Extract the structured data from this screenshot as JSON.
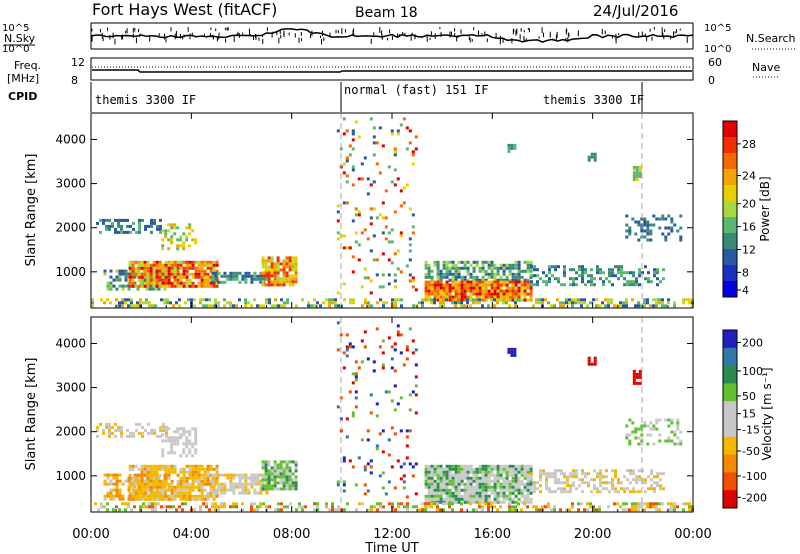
{
  "header": {
    "title": "Fort Hays West (fitACF)",
    "beam": "Beam 18",
    "date": "24/Jul/2016"
  },
  "status_panels": {
    "nsky_label": "N.Sky",
    "nsearch_label": "N.Search",
    "nsky_ticks": [
      "10^5",
      "10^0"
    ],
    "nsearch_ticks": [
      "10^5",
      "10^0"
    ],
    "freq_label_1": "Freq.",
    "freq_label_2": "[MHz]",
    "freq_ticks": [
      "12",
      "8"
    ],
    "nave_label": "Nave",
    "nave_ticks": [
      "60",
      "0"
    ],
    "cpid_label": "CPID",
    "cpid_segments": [
      {
        "label": "themis 3300 IF",
        "start_hour": 0,
        "end_hour": 10
      },
      {
        "label": "normal (fast) 151 IF",
        "start_hour": 10,
        "end_hour": 22
      },
      {
        "label": "themis 3300 IF",
        "start_hour": 22,
        "end_hour": 24
      }
    ]
  },
  "chart_data": [
    {
      "type": "heatmap",
      "name": "power",
      "xlabel": "Time UT",
      "ylabel": "Slant Range [km]",
      "xlim_hours": [
        0,
        24
      ],
      "ylim": [
        180,
        4600
      ],
      "x_ticks": [
        "00:00",
        "04:00",
        "08:00",
        "12:00",
        "16:00",
        "20:00",
        "00:00"
      ],
      "y_ticks": [
        1000,
        2000,
        3000,
        4000
      ],
      "colorbar_label": "Power [dB]",
      "colorbar_ticks": [
        "28",
        "24",
        "20",
        "16",
        "12",
        "8",
        "4"
      ],
      "colorbar_colors": [
        "#e00000",
        "#f03000",
        "#f56a00",
        "#f5a300",
        "#e8d000",
        "#a8d840",
        "#58b870",
        "#3a8a78",
        "#2a5aa0",
        "#1a30c0",
        "#0000e0"
      ],
      "dashed_lines_hours": [
        10,
        22
      ]
    },
    {
      "type": "heatmap",
      "name": "velocity",
      "xlabel": "Time UT",
      "ylabel": "Slant Range [km]",
      "xlim_hours": [
        0,
        24
      ],
      "ylim": [
        180,
        4600
      ],
      "x_ticks": [
        "00:00",
        "04:00",
        "08:00",
        "12:00",
        "16:00",
        "20:00",
        "00:00"
      ],
      "y_ticks": [
        1000,
        2000,
        3000,
        4000
      ],
      "colorbar_label": "Velocity [m s⁻¹]",
      "colorbar_ticks": [
        "200",
        "100",
        "50",
        "15",
        "-15",
        "-50",
        "-100",
        "-200"
      ],
      "colorbar_colors": [
        "#2020c0",
        "#2f78a8",
        "#2a8a50",
        "#60c030",
        "#c8c8c8",
        "#c8c8c8",
        "#f5b800",
        "#f58a00",
        "#f05000",
        "#e00000"
      ],
      "dashed_lines_hours": [
        10,
        22
      ]
    }
  ]
}
